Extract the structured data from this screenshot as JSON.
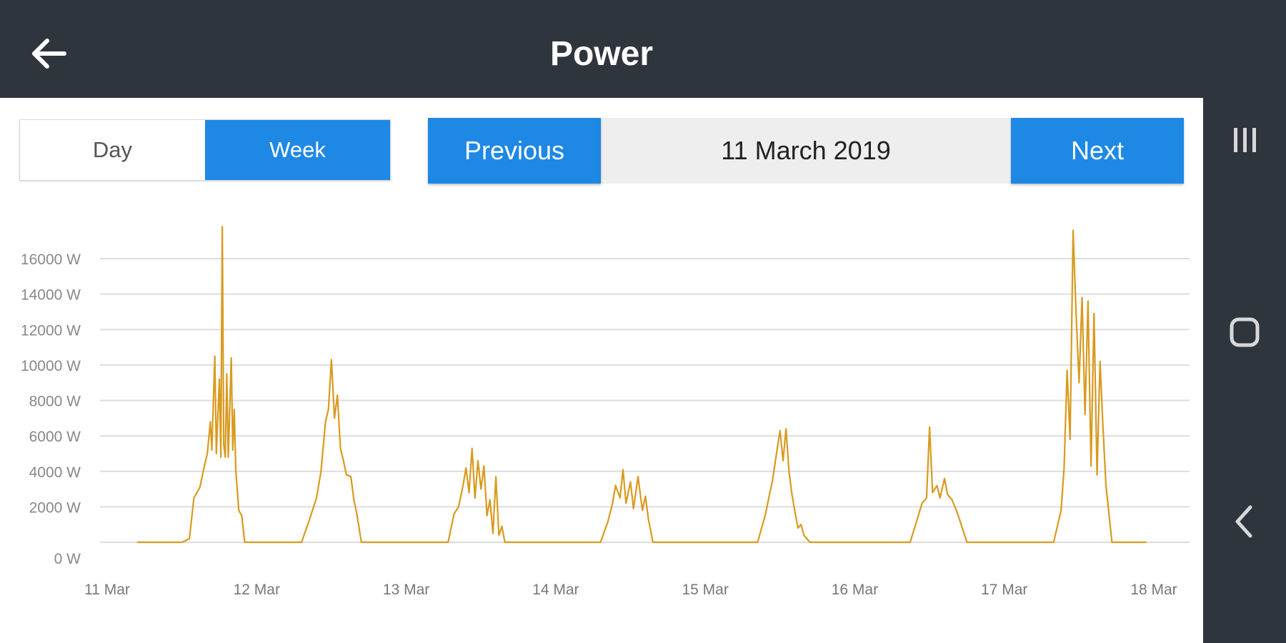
{
  "header": {
    "title": "Power",
    "back_icon": "arrow-left-icon"
  },
  "controls": {
    "period_options": [
      {
        "label": "Day",
        "selected": false
      },
      {
        "label": "Week",
        "selected": true
      }
    ],
    "previous_label": "Previous",
    "next_label": "Next",
    "current_date": "11 March 2019"
  },
  "system_nav": {
    "icons": [
      "recent-apps-icon",
      "home-icon",
      "back-icon"
    ]
  },
  "colors": {
    "header_bg": "#2f353d",
    "accent": "#1e88e5",
    "series": "#d99a1e",
    "grid": "#dddddd"
  },
  "chart_data": {
    "type": "line",
    "ylim": [
      0,
      16000
    ],
    "y_ticks": [
      "0 W",
      "2000 W",
      "4000 W",
      "6000 W",
      "8000 W",
      "10000 W",
      "12000 W",
      "14000 W",
      "16000 W"
    ],
    "x_ticks": [
      "11 Mar",
      "12 Mar",
      "13 Mar",
      "14 Mar",
      "15 Mar",
      "16 Mar",
      "17 Mar",
      "18 Mar"
    ],
    "xlim_days": [
      0,
      7
    ],
    "series": [
      {
        "points": [
          [
            0.2,
            0
          ],
          [
            0.5,
            0
          ],
          [
            0.55,
            200
          ],
          [
            0.58,
            2500
          ],
          [
            0.62,
            3100
          ],
          [
            0.65,
            4300
          ],
          [
            0.67,
            5000
          ],
          [
            0.69,
            6800
          ],
          [
            0.7,
            5200
          ],
          [
            0.72,
            10500
          ],
          [
            0.73,
            5000
          ],
          [
            0.75,
            9200
          ],
          [
            0.76,
            4800
          ],
          [
            0.77,
            17800
          ],
          [
            0.78,
            5500
          ],
          [
            0.79,
            4800
          ],
          [
            0.8,
            9500
          ],
          [
            0.81,
            4800
          ],
          [
            0.83,
            10400
          ],
          [
            0.84,
            5200
          ],
          [
            0.85,
            7500
          ],
          [
            0.86,
            4100
          ],
          [
            0.88,
            1800
          ],
          [
            0.9,
            1500
          ],
          [
            0.92,
            0
          ],
          [
            1.0,
            0
          ],
          [
            1.3,
            0
          ],
          [
            1.35,
            1200
          ],
          [
            1.4,
            2500
          ],
          [
            1.43,
            4000
          ],
          [
            1.46,
            6800
          ],
          [
            1.48,
            7500
          ],
          [
            1.5,
            10300
          ],
          [
            1.52,
            7000
          ],
          [
            1.54,
            8300
          ],
          [
            1.56,
            5300
          ],
          [
            1.58,
            4600
          ],
          [
            1.6,
            3800
          ],
          [
            1.63,
            3700
          ],
          [
            1.65,
            2400
          ],
          [
            1.67,
            1600
          ],
          [
            1.7,
            0
          ],
          [
            2.0,
            0
          ],
          [
            2.28,
            0
          ],
          [
            2.32,
            1600
          ],
          [
            2.35,
            2000
          ],
          [
            2.38,
            3200
          ],
          [
            2.4,
            4200
          ],
          [
            2.42,
            2800
          ],
          [
            2.44,
            5300
          ],
          [
            2.46,
            2500
          ],
          [
            2.48,
            4600
          ],
          [
            2.5,
            3000
          ],
          [
            2.52,
            4300
          ],
          [
            2.54,
            1500
          ],
          [
            2.56,
            2400
          ],
          [
            2.58,
            500
          ],
          [
            2.6,
            3700
          ],
          [
            2.62,
            400
          ],
          [
            2.64,
            900
          ],
          [
            2.66,
            0
          ],
          [
            3.0,
            0
          ],
          [
            3.3,
            0
          ],
          [
            3.35,
            1200
          ],
          [
            3.38,
            2200
          ],
          [
            3.4,
            3200
          ],
          [
            3.43,
            2500
          ],
          [
            3.45,
            4100
          ],
          [
            3.47,
            2200
          ],
          [
            3.5,
            3400
          ],
          [
            3.52,
            1900
          ],
          [
            3.55,
            3700
          ],
          [
            3.58,
            1800
          ],
          [
            3.6,
            2600
          ],
          [
            3.62,
            1300
          ],
          [
            3.65,
            0
          ],
          [
            4.0,
            0
          ],
          [
            4.35,
            0
          ],
          [
            4.4,
            1500
          ],
          [
            4.45,
            3500
          ],
          [
            4.48,
            5200
          ],
          [
            4.5,
            6300
          ],
          [
            4.52,
            4600
          ],
          [
            4.54,
            6400
          ],
          [
            4.56,
            4000
          ],
          [
            4.58,
            2700
          ],
          [
            4.6,
            1700
          ],
          [
            4.62,
            800
          ],
          [
            4.64,
            1000
          ],
          [
            4.66,
            400
          ],
          [
            4.7,
            0
          ],
          [
            5.0,
            0
          ],
          [
            5.37,
            0
          ],
          [
            5.4,
            800
          ],
          [
            5.45,
            2200
          ],
          [
            5.48,
            2500
          ],
          [
            5.5,
            6500
          ],
          [
            5.52,
            2800
          ],
          [
            5.55,
            3200
          ],
          [
            5.57,
            2500
          ],
          [
            5.6,
            3600
          ],
          [
            5.62,
            2700
          ],
          [
            5.65,
            2400
          ],
          [
            5.68,
            1800
          ],
          [
            5.7,
            1300
          ],
          [
            5.75,
            0
          ],
          [
            6.0,
            0
          ],
          [
            6.33,
            0
          ],
          [
            6.38,
            1800
          ],
          [
            6.4,
            4200
          ],
          [
            6.42,
            9700
          ],
          [
            6.44,
            5800
          ],
          [
            6.46,
            17600
          ],
          [
            6.48,
            12900
          ],
          [
            6.5,
            9000
          ],
          [
            6.52,
            13800
          ],
          [
            6.54,
            7200
          ],
          [
            6.56,
            13600
          ],
          [
            6.58,
            4300
          ],
          [
            6.6,
            12900
          ],
          [
            6.62,
            3800
          ],
          [
            6.64,
            10200
          ],
          [
            6.66,
            6500
          ],
          [
            6.68,
            3200
          ],
          [
            6.7,
            1600
          ],
          [
            6.72,
            0
          ],
          [
            6.95,
            0
          ]
        ]
      }
    ]
  }
}
